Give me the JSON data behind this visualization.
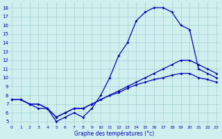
{
  "xlim": [
    -0.3,
    23.3
  ],
  "ylim": [
    4.6,
    18.6
  ],
  "yticks": [
    5,
    6,
    7,
    8,
    9,
    10,
    11,
    12,
    13,
    14,
    15,
    16,
    17,
    18
  ],
  "xticks": [
    0,
    1,
    2,
    3,
    4,
    5,
    6,
    7,
    8,
    9,
    10,
    11,
    12,
    13,
    14,
    15,
    16,
    17,
    18,
    19,
    20,
    21,
    22,
    23
  ],
  "xlabel": "Graphe des températures (°c)",
  "background_color": "#d0efef",
  "grid_color": "#a8d8d8",
  "line_color": "#0000bb",
  "curve1_x": [
    0,
    1,
    2,
    3,
    4,
    5,
    6,
    7,
    8,
    9,
    10,
    11,
    12,
    13,
    14,
    15,
    16,
    17,
    18,
    19,
    20,
    21,
    22,
    23
  ],
  "curve1_y": [
    7.5,
    7.5,
    7.0,
    6.5,
    6.5,
    5.0,
    5.5,
    6.0,
    5.5,
    6.5,
    8.0,
    10.0,
    12.5,
    14.0,
    16.5,
    17.5,
    18.0,
    18.0,
    17.5,
    16.0,
    15.5,
    11.0,
    10.5,
    10.0
  ],
  "curve2_x": [
    0,
    1,
    2,
    3,
    4,
    5,
    6,
    7,
    8,
    9,
    10,
    11,
    12,
    13,
    14,
    15,
    16,
    17,
    18,
    19,
    20,
    21,
    22,
    23
  ],
  "curve2_y": [
    7.5,
    7.5,
    7.0,
    7.0,
    6.5,
    5.5,
    6.0,
    6.5,
    6.5,
    7.0,
    7.5,
    8.0,
    8.5,
    9.0,
    9.5,
    10.0,
    10.5,
    11.0,
    11.5,
    12.0,
    12.0,
    11.5,
    11.0,
    10.5
  ],
  "curve3_x": [
    0,
    1,
    2,
    3,
    4,
    5,
    6,
    7,
    8,
    9,
    10,
    11,
    12,
    13,
    14,
    15,
    16,
    17,
    18,
    19,
    20,
    21,
    22,
    23
  ],
  "curve3_y": [
    7.5,
    7.5,
    7.0,
    7.0,
    6.5,
    5.5,
    6.0,
    6.5,
    6.5,
    7.0,
    7.5,
    8.0,
    8.3,
    8.8,
    9.2,
    9.5,
    9.8,
    10.0,
    10.3,
    10.5,
    10.5,
    10.0,
    9.8,
    9.5
  ]
}
